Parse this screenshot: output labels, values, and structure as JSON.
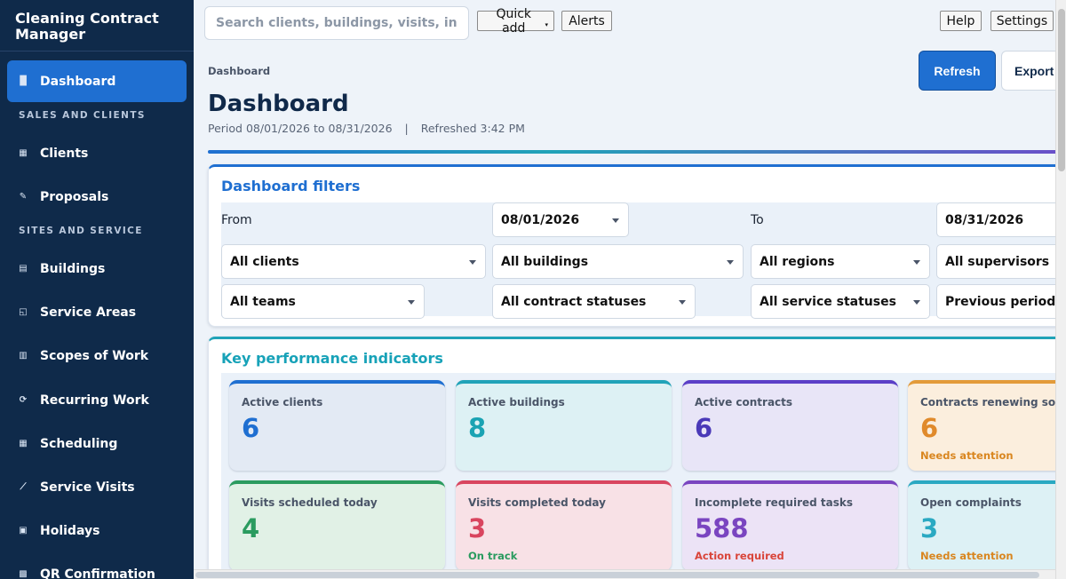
{
  "app": {
    "title": "Cleaning Contract Manager"
  },
  "sidebar": {
    "items": [
      {
        "label": "Dashboard",
        "icon": "chart-icon",
        "glyph": "▐▌"
      },
      {
        "label": "Clients",
        "icon": "building-icon",
        "glyph": "▦"
      },
      {
        "label": "Proposals",
        "icon": "memo-icon",
        "glyph": "✎"
      },
      {
        "label": "Buildings",
        "icon": "buildings-icon",
        "glyph": "▤"
      },
      {
        "label": "Service Areas",
        "icon": "map-icon",
        "glyph": "◱"
      },
      {
        "label": "Scopes of Work",
        "icon": "clipboard-icon",
        "glyph": "▥"
      },
      {
        "label": "Recurring Work",
        "icon": "repeat-icon",
        "glyph": "⟳"
      },
      {
        "label": "Scheduling",
        "icon": "calendar-icon",
        "glyph": "▦"
      },
      {
        "label": "Service Visits",
        "icon": "broom-icon",
        "glyph": "⟋"
      },
      {
        "label": "Holidays",
        "icon": "holiday-calendar-icon",
        "glyph": "▣"
      },
      {
        "label": "QR Confirmation",
        "icon": "qr-icon",
        "glyph": "▩"
      }
    ],
    "sections": [
      "SALES AND CLIENTS",
      "SITES AND SERVICE"
    ]
  },
  "topbar": {
    "search_placeholder": "Search clients, buildings, visits, in...",
    "quick_add": "Quick add",
    "alerts": "Alerts",
    "help": "Help",
    "settings": "Settings"
  },
  "page": {
    "breadcrumb": "Dashboard",
    "title": "Dashboard",
    "period": "Period 08/01/2026 to 08/31/2026",
    "separator": "|",
    "refreshed": "Refreshed 3:42 PM",
    "refresh_button": "Refresh",
    "export_button": "Export"
  },
  "filters": {
    "title": "Dashboard filters",
    "from_label": "From",
    "from_value": "08/01/2026",
    "to_label": "To",
    "to_value": "08/31/2026",
    "clients": "All clients",
    "buildings": "All buildings",
    "regions": "All regions",
    "supervisors": "All supervisors",
    "teams": "All teams",
    "contract_statuses": "All contract statuses",
    "service_statuses": "All service statuses",
    "comparison": "Previous period"
  },
  "kpi": {
    "title": "Key performance indicators",
    "cards": [
      {
        "label": "Active clients",
        "value": "6",
        "note": "",
        "accent": "#1f6fd1",
        "bg": "#e3eaf4",
        "value_color": "#1f6fd1",
        "note_color": ""
      },
      {
        "label": "Active buildings",
        "value": "8",
        "note": "",
        "accent": "#20a3b8",
        "bg": "#ddf1f4",
        "value_color": "#1aa3b3",
        "note_color": ""
      },
      {
        "label": "Active contracts",
        "value": "6",
        "note": "",
        "accent": "#5b3fc7",
        "bg": "#e8e5f7",
        "value_color": "#4a39b8",
        "note_color": ""
      },
      {
        "label": "Contracts renewing soon",
        "value": "6",
        "note": "Needs attention",
        "accent": "#e39b3a",
        "bg": "#fbeedd",
        "value_color": "#e08a2b",
        "note_color": "#d9861f"
      },
      {
        "label": "Visits scheduled today",
        "value": "4",
        "note": "",
        "accent": "#2a9b5f",
        "bg": "#e1f1e6",
        "value_color": "#2a9b5f",
        "note_color": ""
      },
      {
        "label": "Visits completed today",
        "value": "3",
        "note": "On track",
        "accent": "#d9455f",
        "bg": "#f8e1e6",
        "value_color": "#d9455f",
        "note_color": "#2a9b5f"
      },
      {
        "label": "Incomplete required tasks",
        "value": "588",
        "note": "Action required",
        "accent": "#7a45c0",
        "bg": "#ece3f6",
        "value_color": "#7a45c0",
        "note_color": "#d9453a"
      },
      {
        "label": "Open complaints",
        "value": "3",
        "note": "Needs attention",
        "accent": "#2aa9c2",
        "bg": "#ddf1f5",
        "value_color": "#2aa9c2",
        "note_color": "#d9861f"
      }
    ]
  },
  "colors": {
    "sidebar_bg": "#0f2a4a",
    "active_nav": "#1f6fd1",
    "filters_title": "#1f6fd1",
    "kpi_title": "#17a2b8"
  }
}
